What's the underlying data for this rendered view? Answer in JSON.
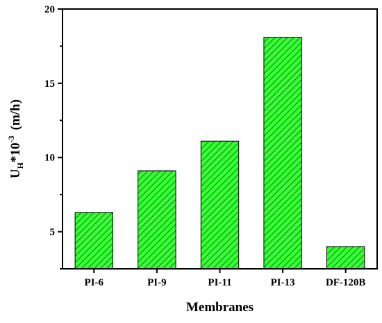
{
  "chart_data": {
    "type": "bar",
    "title": "",
    "xlabel": "Membranes",
    "ylabel": {
      "base": "U",
      "subscript": "H",
      "middle": "*10",
      "superscript": "-3",
      "unit": "(m/h)"
    },
    "categories": [
      "PI-6",
      "PI-9",
      "PI-11",
      "PI-13",
      "DF-120B"
    ],
    "values": [
      6.3,
      9.1,
      11.1,
      18.1,
      4.0
    ],
    "y_ticks": [
      5,
      10,
      15,
      20
    ],
    "ylim": [
      2.5,
      20
    ],
    "grid": false,
    "legend": "none",
    "bar_fill_color": "#33ff33",
    "bar_hatch_color": "#1a7a1a",
    "bar_edge_color": "#000000",
    "bar_hatch_pattern": "diagonal-lines"
  }
}
